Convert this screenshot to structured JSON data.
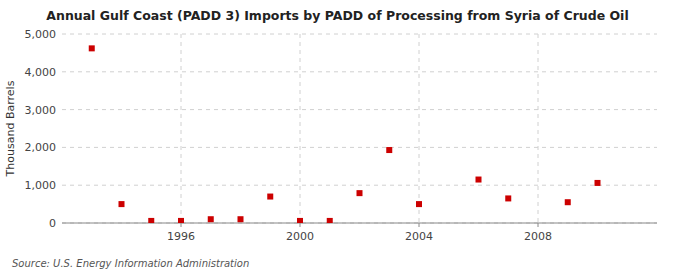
{
  "chart_data": {
    "type": "scatter",
    "title": "Annual Gulf Coast (PADD 3) Imports by PADD of Processing from Syria of Crude Oil",
    "ylabel": "Thousand Barrels",
    "source": "Source: U.S. Energy Information Administration",
    "x": [
      1993,
      1994,
      1995,
      1996,
      1997,
      1998,
      1999,
      2000,
      2001,
      2002,
      2003,
      2004,
      2006,
      2007,
      2009,
      2010
    ],
    "values": [
      4620,
      500,
      55,
      55,
      100,
      100,
      700,
      55,
      55,
      790,
      1930,
      500,
      1150,
      650,
      550,
      1060
    ],
    "color": "#cc0000",
    "marker": "square",
    "xlim": [
      1992,
      2012
    ],
    "ylim": [
      0,
      5000
    ],
    "xticks": [
      1996,
      2000,
      2004,
      2008
    ],
    "yticks": [
      0,
      {
        "value": 1000,
        "label": "1,000"
      },
      {
        "value": 2000,
        "label": "2,000"
      },
      {
        "value": 3000,
        "label": "3,000"
      },
      {
        "value": 4000,
        "label": "4,000"
      },
      {
        "value": 5000,
        "label": "5,000"
      }
    ],
    "grid": true
  }
}
